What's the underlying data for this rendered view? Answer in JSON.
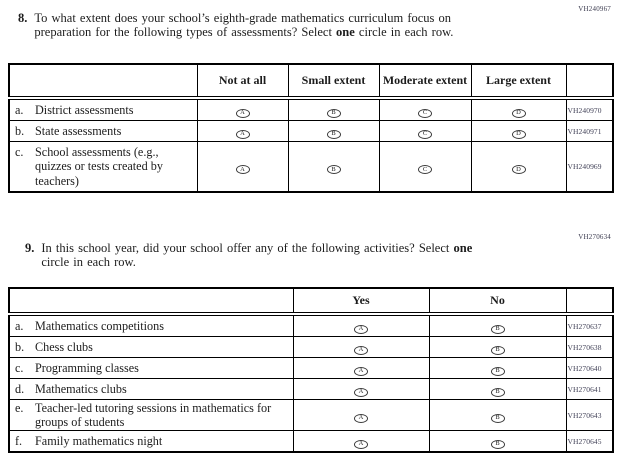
{
  "q8": {
    "code": "VH240967",
    "number": "8.",
    "text_segments": [
      {
        "text": "To what extent does your school’s eighth-grade mathematics curriculum focus on"
      },
      {
        "br": true
      },
      {
        "text": "preparation for the following types of assessments? Select "
      },
      {
        "text": "one",
        "bold": true
      },
      {
        "text": " circle in each row."
      }
    ],
    "table": {
      "headers": [
        "Not at all",
        "Small extent",
        "Moderate extent",
        "Large extent"
      ],
      "options": [
        "A",
        "B",
        "C",
        "D"
      ],
      "rows": [
        {
          "prefix": "a.",
          "label": "District assessments",
          "code": "VH240970"
        },
        {
          "prefix": "b.",
          "label": "State assessments",
          "code": "VH240971"
        },
        {
          "prefix": "c.",
          "label": "School assessments (e.g., quizzes or tests created by teachers)",
          "code": "VH240969"
        }
      ]
    }
  },
  "q9": {
    "code": "VH270634",
    "number": "9.",
    "text_segments": [
      {
        "text": "In this school year, did your school offer any of the following activities? Select "
      },
      {
        "text": "one",
        "bold": true
      },
      {
        "br": true
      },
      {
        "text": "circle in each row."
      }
    ],
    "table": {
      "headers": [
        "Yes",
        "No"
      ],
      "options": [
        "A",
        "B"
      ],
      "rows": [
        {
          "prefix": "a.",
          "label": "Mathematics competitions",
          "code": "VH270637"
        },
        {
          "prefix": "b.",
          "label": "Chess clubs",
          "code": "VH270638"
        },
        {
          "prefix": "c.",
          "label": "Programming classes",
          "code": "VH270640"
        },
        {
          "prefix": "d.",
          "label": "Mathematics clubs",
          "code": "VH270641"
        },
        {
          "prefix": "e.",
          "label": "Teacher-led tutoring sessions in mathematics for groups of students",
          "code": "VH270643"
        },
        {
          "prefix": "f.",
          "label": "Family mathematics night",
          "code": "VH270645"
        }
      ]
    }
  }
}
